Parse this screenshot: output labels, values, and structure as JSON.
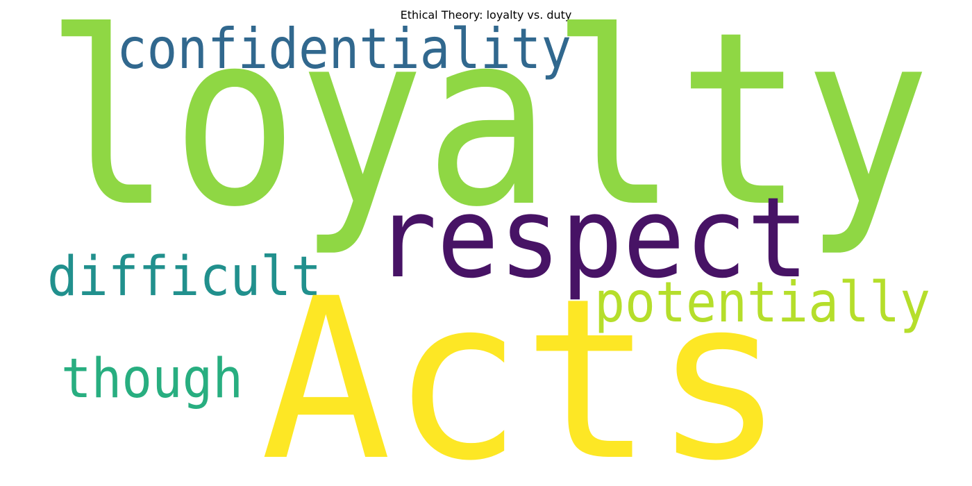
{
  "title": "Ethical Theory: loyalty vs. duty",
  "words": [
    {
      "text": "loyalty",
      "color": "#8fd744"
    },
    {
      "text": "confidentiality",
      "color": "#31688e"
    },
    {
      "text": "respect",
      "color": "#471365"
    },
    {
      "text": "difficult",
      "color": "#21908d"
    },
    {
      "text": "potentially",
      "color": "#b5de2b"
    },
    {
      "text": "though",
      "color": "#28ae80"
    },
    {
      "text": "Acts",
      "color": "#fde725"
    }
  ]
}
